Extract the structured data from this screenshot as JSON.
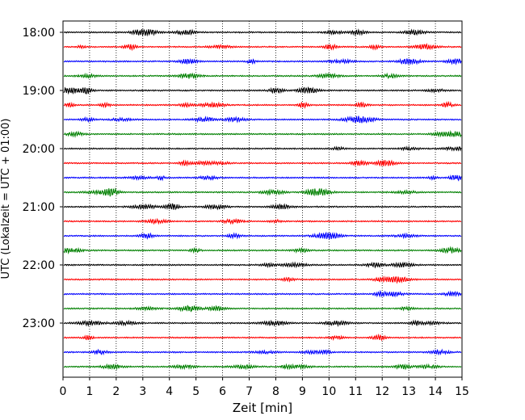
{
  "chart_data": {
    "type": "line",
    "subtype": "seismogram-helicorder",
    "xlabel": "Zeit  [min]",
    "ylabel": "UTC (Lokalzeit = UTC + 01:00)",
    "xlim": [
      0,
      15
    ],
    "x_ticks": [
      "0",
      "1",
      "2",
      "3",
      "4",
      "5",
      "6",
      "7",
      "8",
      "9",
      "10",
      "11",
      "12",
      "13",
      "14",
      "15"
    ],
    "y_tick_labels": [
      "18:00",
      "19:00",
      "20:00",
      "21:00",
      "22:00",
      "23:00"
    ],
    "trace_start_times": [
      "18:00",
      "18:15",
      "18:30",
      "18:45",
      "19:00",
      "19:15",
      "19:30",
      "19:45",
      "20:00",
      "20:15",
      "20:30",
      "20:45",
      "21:00",
      "21:15",
      "21:30",
      "21:45",
      "22:00",
      "22:15",
      "22:30",
      "22:45",
      "23:00",
      "23:15",
      "23:30",
      "23:45"
    ],
    "trace_minutes_each": 15,
    "trace_colors": [
      "#000000",
      "#ff0000",
      "#0000ff",
      "#008000"
    ],
    "vertical_grid": "dotted, every 1 min",
    "grid": true
  }
}
